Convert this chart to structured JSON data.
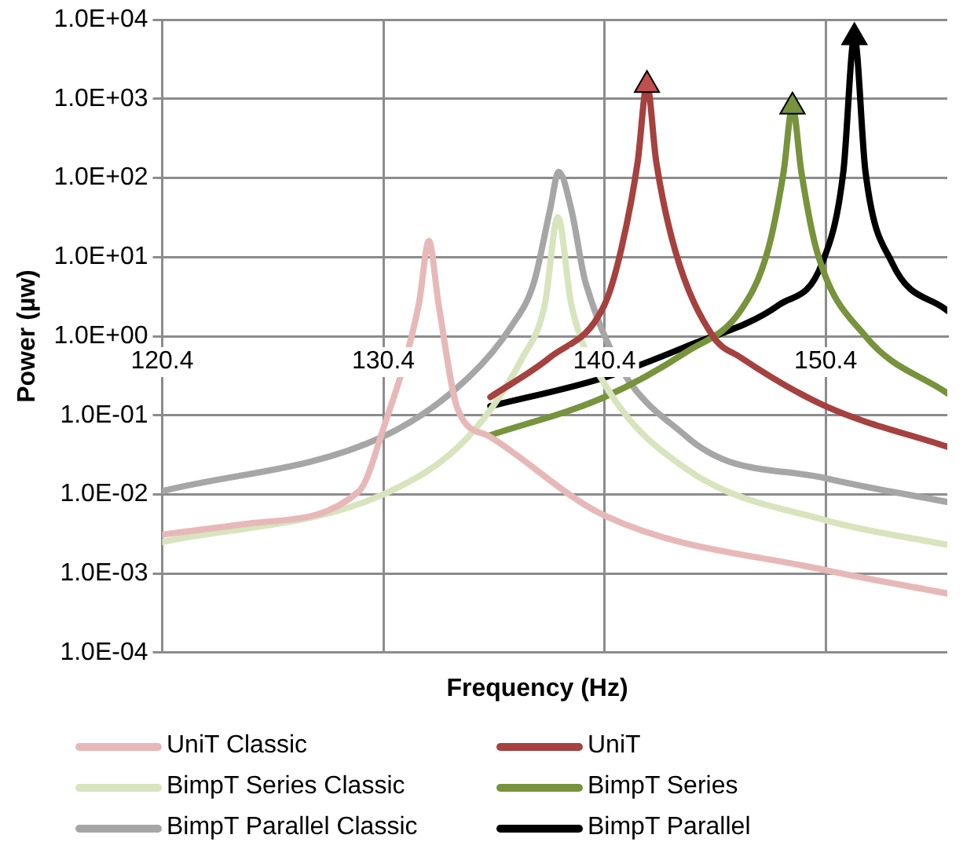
{
  "chart_data": {
    "type": "line",
    "xlabel": "Frequency (Hz)",
    "ylabel": "Power (µw)",
    "log": "y",
    "grid": true,
    "legend": "bottom",
    "line_style": "solid",
    "marker": "none",
    "xlim": [
      120.4,
      155.9
    ],
    "xticks": [
      120.4,
      130.4,
      140.4,
      150.4
    ],
    "ylim": [
      0.0001,
      10000
    ],
    "yticks": [
      {
        "value": 0.0001,
        "label": "1.0E-04"
      },
      {
        "value": 0.001,
        "label": "1.0E-03"
      },
      {
        "value": 0.01,
        "label": "1.0E-02"
      },
      {
        "value": 0.1,
        "label": "1.0E-01"
      },
      {
        "value": 1,
        "label": "1.0E+00"
      },
      {
        "value": 10,
        "label": "1.0E+01"
      },
      {
        "value": 100,
        "label": "1.0E+02"
      },
      {
        "value": 1000,
        "label": "1.0E+03"
      },
      {
        "value": 10000,
        "label": "1.0E+04"
      }
    ],
    "series": [
      {
        "name": "UniT Classic",
        "color": "#e6b9b8",
        "x": [
          120.4,
          124.4,
          129.3,
          130.4,
          132.0,
          132.46,
          132.9,
          133.76,
          135.2,
          140.4,
          150.4,
          155.9
        ],
        "values": [
          0.0031,
          0.0043,
          0.011,
          0.068,
          2.5,
          16,
          2.5,
          0.12,
          0.054,
          0.0054,
          0.0011,
          0.00056
        ]
      },
      {
        "name": "UniT",
        "color": "#a5413f",
        "x": [
          135.24,
          137.94,
          140.4,
          141.14,
          141.9,
          142.32,
          142.74,
          143.6,
          145.3,
          146.55,
          150.4,
          155.9
        ],
        "values": [
          0.17,
          0.54,
          2.5,
          12,
          160,
          1500,
          160,
          12,
          1,
          0.54,
          0.13,
          0.04
        ]
      },
      {
        "name": "BimpT Series Classic",
        "color": "#d7e4bd",
        "x": [
          120.4,
          130.4,
          134.25,
          136.7,
          137.7,
          138.29,
          138.9,
          140.4,
          144.1,
          150.4,
          155.9
        ],
        "values": [
          0.0025,
          0.01,
          0.054,
          0.54,
          2.5,
          32,
          2.5,
          0.25,
          0.021,
          0.0047,
          0.0023
        ]
      },
      {
        "name": "BimpT Series",
        "color": "#77933c",
        "x": [
          135.24,
          140.4,
          144.1,
          146.55,
          147.78,
          148.5,
          148.9,
          149.3,
          150.0,
          152.2,
          155.9
        ],
        "values": [
          0.056,
          0.17,
          0.63,
          2.1,
          12,
          120,
          800,
          120,
          12,
          1,
          0.19
        ]
      },
      {
        "name": "BimpT Parallel Classic",
        "color": "#a6a6a6",
        "x": [
          120.4,
          130.4,
          134.25,
          136.2,
          137.2,
          137.94,
          138.33,
          138.9,
          139.55,
          144.1,
          150.4,
          155.9
        ],
        "values": [
          0.011,
          0.054,
          0.3,
          1.35,
          4.7,
          40,
          120,
          40,
          4.7,
          0.054,
          0.016,
          0.008
        ]
      },
      {
        "name": "BimpT Parallel",
        "color": "#000000",
        "x": [
          135.24,
          140.4,
          144.1,
          148.3,
          150.25,
          151.2,
          151.7,
          152.2,
          153.4,
          155.9
        ],
        "values": [
          0.13,
          0.3,
          0.74,
          2.5,
          8.5,
          120,
          6000,
          120,
          8.5,
          2.1
        ]
      },
      {
        "type": "scatter",
        "marker": "triangle",
        "color": "#c0504d",
        "x": [
          142.32
        ],
        "values": [
          1500
        ]
      },
      {
        "type": "scatter",
        "marker": "triangle",
        "color": "#77933c",
        "x": [
          148.9
        ],
        "values": [
          800
        ]
      },
      {
        "type": "scatter",
        "marker": "triangle",
        "color": "#000000",
        "x": [
          151.7
        ],
        "values": [
          6000
        ]
      }
    ]
  }
}
